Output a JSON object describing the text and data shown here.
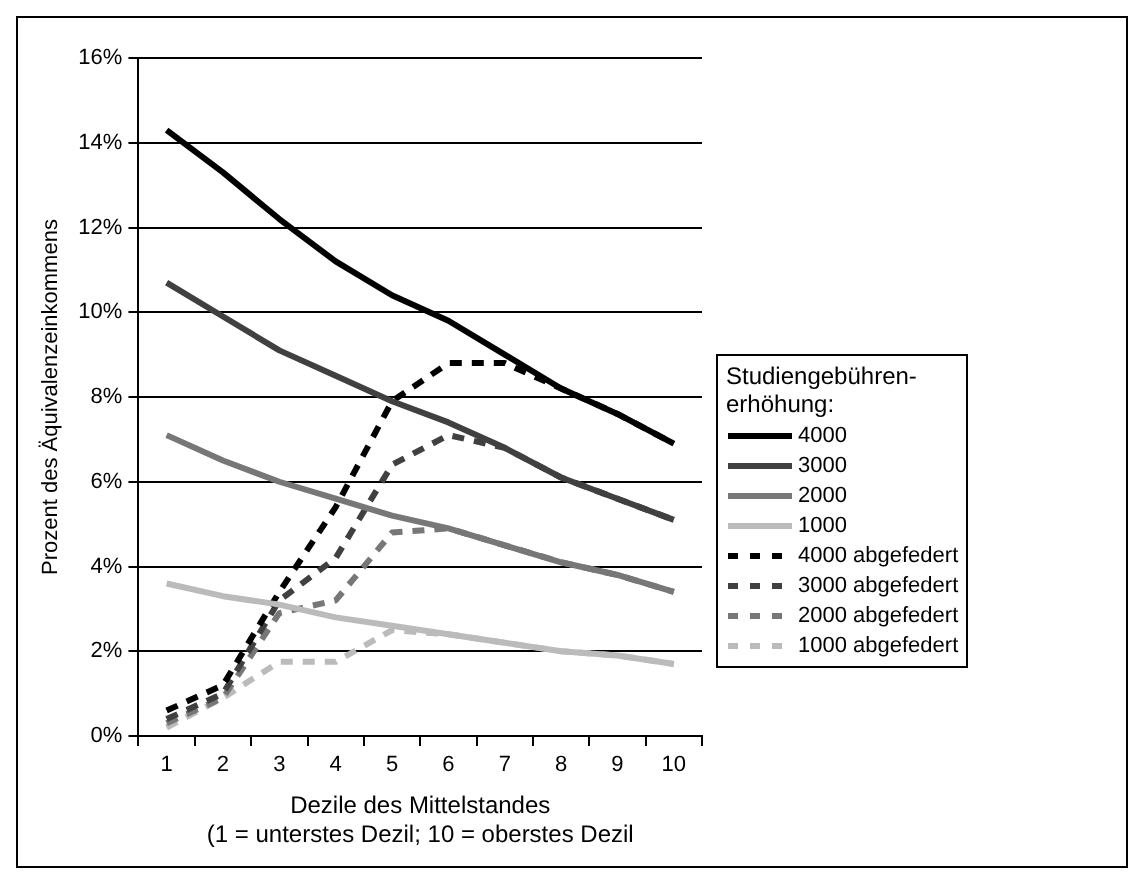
{
  "chart_data": {
    "type": "line",
    "xlabel": "Dezile des Mittelstandes\n(1 = unterstes Dezil; 10 = oberstes Dezil",
    "ylabel": "Prozent des Äquivalenzeinkommens",
    "legend_title": "Studiengebühren-erhöhung:",
    "categories": [
      "1",
      "2",
      "3",
      "4",
      "5",
      "6",
      "7",
      "8",
      "9",
      "10"
    ],
    "ylim": [
      0,
      16
    ],
    "yticks": [
      {
        "value": 0,
        "label": "0%"
      },
      {
        "value": 2,
        "label": "2%"
      },
      {
        "value": 4,
        "label": "4%"
      },
      {
        "value": 6,
        "label": "6%"
      },
      {
        "value": 8,
        "label": "8%"
      },
      {
        "value": 10,
        "label": "10%"
      },
      {
        "value": 12,
        "label": "12%"
      },
      {
        "value": 14,
        "label": "14%"
      },
      {
        "value": 16,
        "label": "16%"
      }
    ],
    "grid": "y",
    "legend": "right",
    "marker": "none",
    "series": [
      {
        "name": "4000",
        "color": "#000000",
        "line_style": "solid",
        "values": [
          14.3,
          13.3,
          12.2,
          11.2,
          10.4,
          9.8,
          9.0,
          8.2,
          7.6,
          6.9
        ]
      },
      {
        "name": "3000",
        "color": "#404040",
        "line_style": "solid",
        "values": [
          10.7,
          9.9,
          9.1,
          8.5,
          7.9,
          7.4,
          6.8,
          6.1,
          5.6,
          5.1
        ]
      },
      {
        "name": "2000",
        "color": "#777777",
        "line_style": "solid",
        "values": [
          7.1,
          6.5,
          6.0,
          5.6,
          5.2,
          4.9,
          4.5,
          4.1,
          3.8,
          3.4
        ]
      },
      {
        "name": "1000",
        "color": "#bbbbbb",
        "line_style": "solid",
        "values": [
          3.6,
          3.3,
          3.1,
          2.8,
          2.6,
          2.4,
          2.2,
          2.0,
          1.9,
          1.7
        ]
      },
      {
        "name": "4000 abgefedert",
        "color": "#000000",
        "line_style": "dashed",
        "values": [
          0.6,
          1.2,
          3.4,
          5.4,
          7.9,
          8.8,
          8.8,
          8.2,
          7.6,
          6.9
        ]
      },
      {
        "name": "3000 abgefedert",
        "color": "#404040",
        "line_style": "dashed",
        "values": [
          0.4,
          1.0,
          3.2,
          4.2,
          6.4,
          7.1,
          6.8,
          6.1,
          5.6,
          5.1
        ]
      },
      {
        "name": "2000 abgefedert",
        "color": "#777777",
        "line_style": "dashed",
        "values": [
          0.3,
          0.9,
          2.9,
          3.2,
          4.8,
          4.9,
          4.5,
          4.1,
          3.8,
          3.4
        ]
      },
      {
        "name": "1000 abgefedert",
        "color": "#bbbbbb",
        "line_style": "dashed",
        "values": [
          0.2,
          0.9,
          1.75,
          1.75,
          2.5,
          2.4,
          2.2,
          2.0,
          1.9,
          1.7
        ]
      }
    ]
  }
}
